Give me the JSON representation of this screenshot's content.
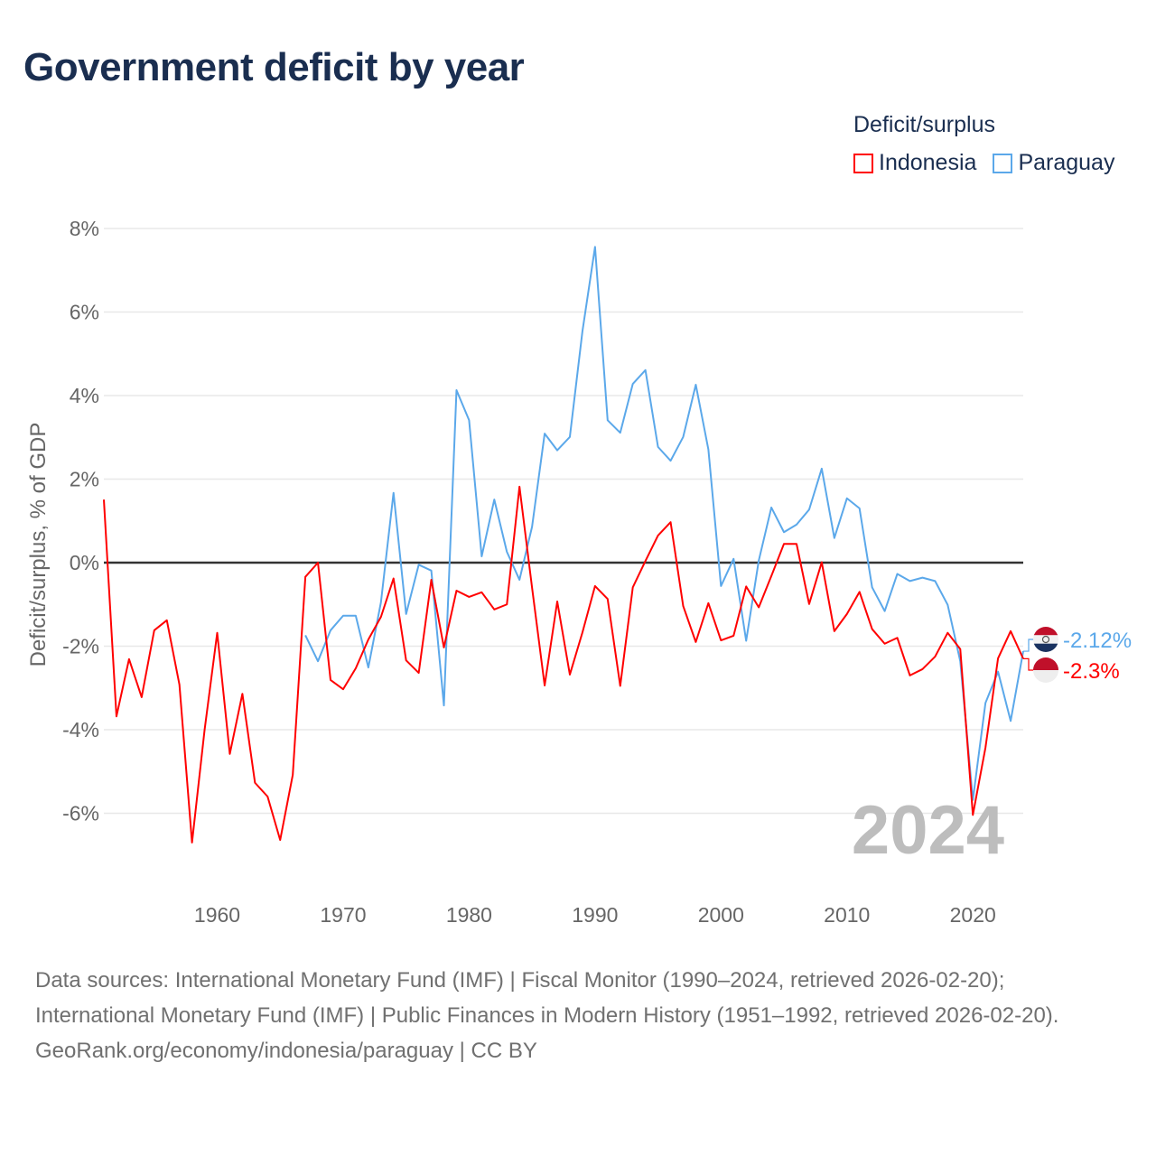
{
  "title": "Government deficit by year",
  "legend": {
    "title": "Deficit/surplus",
    "items": [
      {
        "label": "Indonesia",
        "color": "#ff0000"
      },
      {
        "label": "Paraguay",
        "color": "#5ba8ea"
      }
    ]
  },
  "chart_data": {
    "type": "line",
    "title": "Government deficit by year",
    "xlabel": "",
    "ylabel": "Deficit/surplus, % of GDP",
    "xlim": [
      1951,
      2024
    ],
    "ylim": [
      -7.5,
      8.5
    ],
    "x_ticks": [
      1960,
      1970,
      1980,
      1990,
      2000,
      2010,
      2020
    ],
    "y_ticks": [
      8,
      6,
      4,
      2,
      0,
      -2,
      -4,
      -6
    ],
    "y_tick_labels": [
      "8%",
      "6%",
      "4%",
      "2%",
      "0%",
      "-2%",
      "-4%",
      "-6%"
    ],
    "grid": true,
    "legend_position": "top-right",
    "current_year_label": "2024",
    "series": [
      {
        "name": "Indonesia",
        "color": "#ff0000",
        "end_label": "-2.3%",
        "start_year": 1951,
        "values": [
          1.51,
          -3.68,
          -2.31,
          -3.22,
          -1.62,
          -1.38,
          -2.92,
          -6.7,
          -4.0,
          -1.68,
          -4.58,
          -3.14,
          -5.27,
          -5.6,
          -6.64,
          -5.08,
          -0.34,
          0.0,
          -2.81,
          -3.03,
          -2.53,
          -1.84,
          -1.3,
          -0.38,
          -2.34,
          -2.64,
          -0.41,
          -2.03,
          -0.67,
          -0.82,
          -0.71,
          -1.12,
          -1.0,
          1.82,
          -0.6,
          -2.94,
          -0.93,
          -2.68,
          -1.67,
          -0.56,
          -0.87,
          -2.95,
          -0.59,
          0.04,
          0.65,
          0.97,
          -1.04,
          -1.9,
          -0.97,
          -1.86,
          -1.75,
          -0.57,
          -1.07,
          -0.32,
          0.45,
          0.45,
          -0.99,
          0.01,
          -1.64,
          -1.23,
          -0.7,
          -1.59,
          -1.94,
          -1.8,
          -2.7,
          -2.55,
          -2.25,
          -1.68,
          -2.07,
          -6.04,
          -4.43,
          -2.29,
          -1.64,
          -2.3
        ]
      },
      {
        "name": "Paraguay",
        "color": "#5ba8ea",
        "end_label": "-2.12%",
        "start_year": 1967,
        "values": [
          -1.74,
          -2.36,
          -1.62,
          -1.27,
          -1.27,
          -2.51,
          -0.95,
          1.67,
          -1.23,
          -0.05,
          -0.19,
          -3.42,
          4.13,
          3.41,
          0.15,
          1.51,
          0.26,
          -0.41,
          0.86,
          3.09,
          2.69,
          3.01,
          5.54,
          7.56,
          3.41,
          3.11,
          4.28,
          4.61,
          2.77,
          2.44,
          3.01,
          4.26,
          2.71,
          -0.56,
          0.09,
          -1.87,
          0.05,
          1.32,
          0.73,
          0.91,
          1.27,
          2.25,
          0.59,
          1.54,
          1.3,
          -0.59,
          -1.16,
          -0.27,
          -0.44,
          -0.36,
          -0.44,
          -1.01,
          -2.36,
          -5.68,
          -3.36,
          -2.61,
          -3.79,
          -2.12
        ]
      }
    ]
  },
  "footer": {
    "sources": "Data sources: International Monetary Fund (IMF) | Fiscal Monitor (1990–2024, retrieved 2026-02-20); International Monetary Fund (IMF) | Public Finances in Modern History (1951–1992, retrieved 2026-02-20).",
    "credit": "GeoRank.org/economy/indonesia/paraguay | CC BY"
  }
}
